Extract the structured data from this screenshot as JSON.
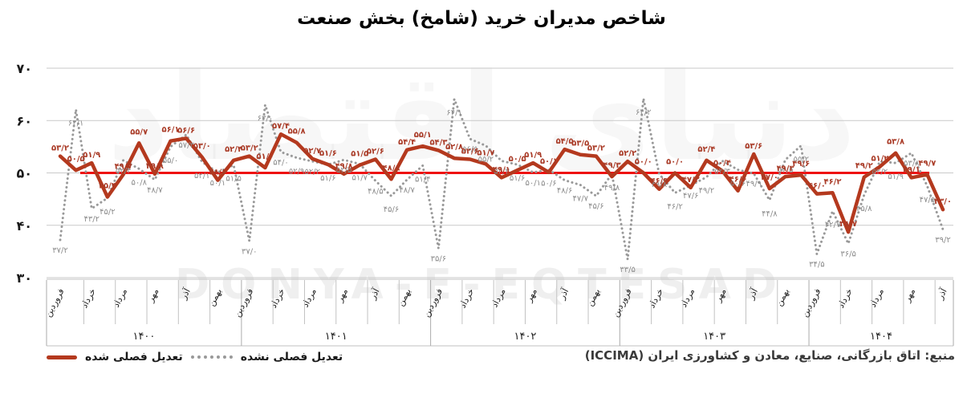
{
  "title": "شاخص مدیران خرید (شامخ) بخش صنعت",
  "watermark_fa": "دنیای اقتصاد",
  "watermark_en": "DONYA-E-EQTESAD",
  "source": "منبع: اتاق بازرگانی، صنایع، معادن و کشاورزی ایران (ICCIMA)",
  "legend": {
    "adjusted": "تعدیل فصلی شده",
    "unadjusted": "تعدیل فصلی نشده"
  },
  "colors": {
    "adjusted_line": "#b4391e",
    "unadjusted_line": "#999999",
    "reference_line": "#ee1010",
    "grid": "#c9c9c9",
    "axis_line": "#c2c2c2",
    "year_line": "#ababab",
    "label_red": "#a93a26",
    "label_gray": "#8c8c8c",
    "axis_text": "#1a1a1a"
  },
  "chart_data": {
    "type": "line",
    "title": "شاخص مدیران خرید (شامخ) بخش صنعت",
    "ylim": [
      30,
      70
    ],
    "yticks": [
      {
        "v": 70,
        "label": "۷۰"
      },
      {
        "v": 60,
        "label": "۶۰"
      },
      {
        "v": 50,
        "label": "۵۰"
      },
      {
        "v": 40,
        "label": "۴۰"
      },
      {
        "v": 30,
        "label": "۳۰"
      }
    ],
    "reference_line": 50,
    "grid": true,
    "legend_position": "bottom-left",
    "month_tick_labels": [
      "فروردین",
      "خرداد",
      "مرداد",
      "مهر",
      "آذر",
      "بهمن"
    ],
    "years": [
      {
        "label": "۱۴۰۰",
        "months": 12
      },
      {
        "label": "۱۴۰۱",
        "months": 12
      },
      {
        "label": "۱۴۰۲",
        "months": 12
      },
      {
        "label": "۱۴۰۳",
        "months": 12
      },
      {
        "label": "۱۴۰۴",
        "months": 9
      }
    ],
    "series": [
      {
        "name": "تعدیل فصلی شده",
        "style": "solid",
        "color": "#b4391e",
        "values": [
          53.2,
          50.5,
          51.9,
          45.4,
          49.7,
          55.7,
          49.8,
          56.1,
          56.6,
          53.0,
          48.6,
          52.4,
          53.2,
          51.0,
          57.4,
          55.8,
          52.7,
          51.6,
          49.8,
          51.5,
          52.6,
          48.8,
          54.4,
          55.1,
          54.3,
          52.8,
          52.6,
          51.7,
          49.1,
          50.5,
          51.9,
          50.1,
          54.5,
          53.5,
          53.2,
          49.3,
          52.2,
          50.0,
          46.9,
          50.0,
          47.2,
          52.4,
          50.4,
          46.6,
          53.6,
          47.0,
          49.3,
          49.6,
          46.0,
          46.2,
          38.7,
          49.2,
          51.2,
          53.8,
          49.1,
          49.7,
          43.0
        ]
      },
      {
        "name": "تعدیل فصلی نشده",
        "style": "dotted",
        "color": "#999999",
        "values": [
          37.2,
          62.1,
          43.2,
          45.2,
          52.4,
          50.8,
          48.7,
          55.0,
          57.3,
          52.1,
          50.1,
          51.5,
          37.0,
          63.0,
          54.0,
          52.9,
          52.2,
          51.6,
          52.5,
          51.7,
          48.5,
          45.6,
          48.7,
          51.4,
          35.6,
          64.1,
          56.5,
          55.2,
          52.3,
          51.6,
          50.1,
          50.6,
          48.6,
          47.7,
          45.6,
          49.8,
          33.5,
          64.2,
          49.8,
          46.2,
          47.6,
          49.2,
          52.3,
          50.6,
          49.9,
          44.8,
          52.5,
          55.2,
          34.5,
          42.7,
          36.5,
          45.8,
          52.2,
          51.9,
          53.8,
          47.5,
          39.2
        ]
      }
    ]
  }
}
